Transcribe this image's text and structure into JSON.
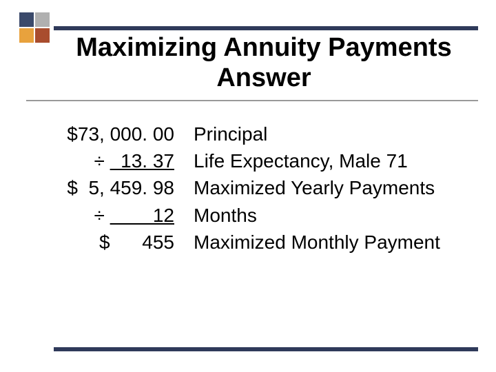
{
  "colors": {
    "rule": "#2f3a5a",
    "underline": "#999999",
    "logo": [
      "#3b4a6b",
      "#b0b0b0",
      "#e8a23d",
      "#a94d2e"
    ],
    "background": "#ffffff",
    "text": "#000000"
  },
  "title": "Maximizing Annuity Payments Answer",
  "calc": {
    "principal": "$73, 000. 00",
    "divisor1_prefix": "÷ ",
    "divisor1_value": "  13. 37",
    "yearly": "$  5, 459. 98",
    "divisor2_prefix": "÷ ",
    "divisor2_value": "        12",
    "monthly": "$      455"
  },
  "labels": {
    "l1": "Principal",
    "l2": "Life Expectancy, Male 71",
    "l3": "Maximized Yearly Payments",
    "l4": "Months",
    "l5": "Maximized Monthly Payment"
  },
  "typography": {
    "title_fontsize": 38,
    "title_weight": "bold",
    "body_fontsize": 28,
    "font_family": "Arial"
  }
}
